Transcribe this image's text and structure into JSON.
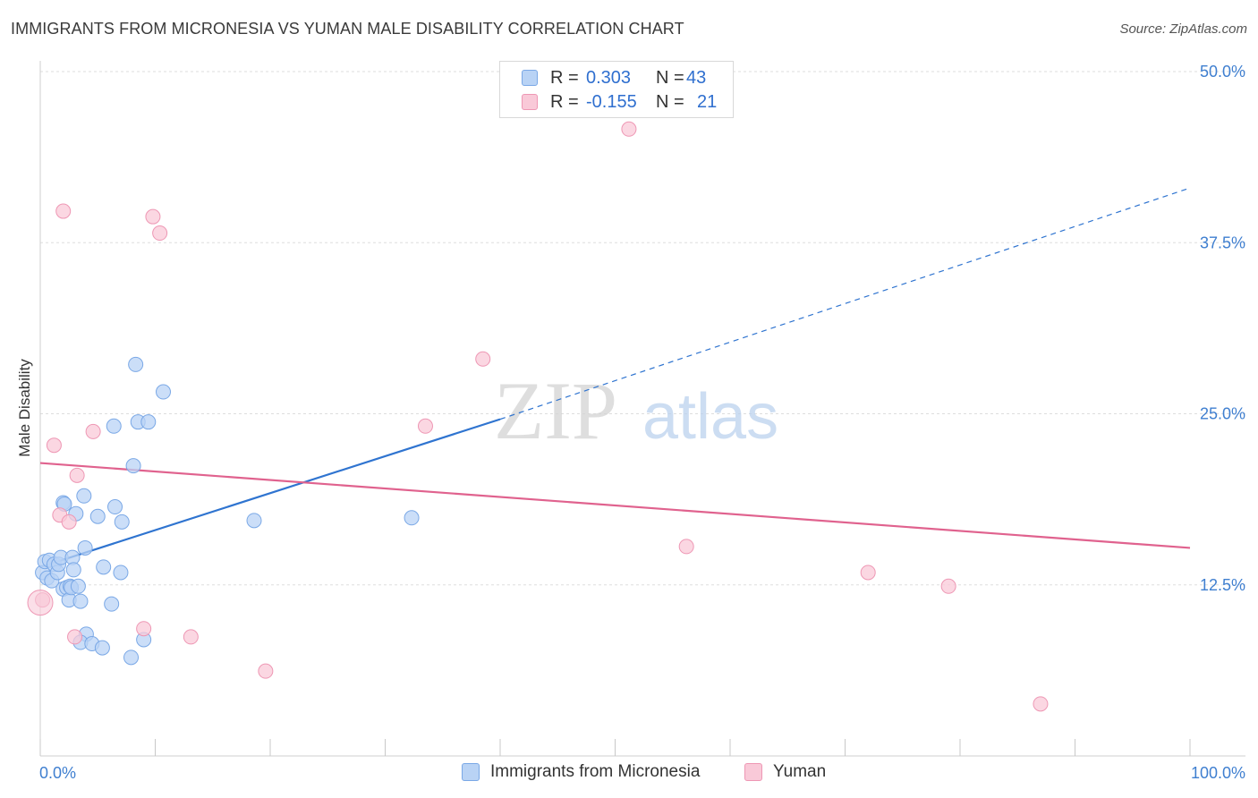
{
  "title": "IMMIGRANTS FROM MICRONESIA VS YUMAN MALE DISABILITY CORRELATION CHART",
  "source": "Source: ZipAtlas.com",
  "watermark": {
    "zip": "ZIP",
    "atlas": "atlas"
  },
  "legend": {
    "r_label": "R =",
    "n_label": "N =",
    "series": [
      {
        "name": "Immigrants from Micronesia",
        "r": "0.303",
        "n": "43"
      },
      {
        "name": "Yuman",
        "r": "-0.155",
        "n": "21"
      }
    ]
  },
  "colors": {
    "blue_fill": "#b9d3f5",
    "blue_stroke": "#7aa8e6",
    "blue_line": "#2f74d0",
    "pink_fill": "#f9c9d8",
    "pink_stroke": "#ee97b4",
    "pink_line": "#e0628e",
    "tick_text": "#3f7fd0",
    "grid": "#dddddd"
  },
  "chart_data": {
    "type": "scatter",
    "title": "IMMIGRANTS FROM MICRONESIA VS YUMAN MALE DISABILITY CORRELATION CHART",
    "xlabel": "",
    "ylabel": "Male Disability",
    "xlim": [
      0,
      100
    ],
    "ylim": [
      0,
      50
    ],
    "x_tick_labels": [
      "0.0%",
      "100.0%"
    ],
    "y_ticks": [
      12.5,
      25.0,
      37.5,
      50.0
    ],
    "y_tick_labels": [
      "12.5%",
      "25.0%",
      "37.5%",
      "50.0%"
    ],
    "grid": true,
    "series": [
      {
        "name": "Immigrants from Micronesia",
        "color": "#7aa8e6",
        "points": [
          [
            0.2,
            13.4
          ],
          [
            0.4,
            14.2
          ],
          [
            0.6,
            13.0
          ],
          [
            0.8,
            14.3
          ],
          [
            1.0,
            12.8
          ],
          [
            1.2,
            14.0
          ],
          [
            1.5,
            13.4
          ],
          [
            1.6,
            14.0
          ],
          [
            1.8,
            14.5
          ],
          [
            2.0,
            12.2
          ],
          [
            2.0,
            18.5
          ],
          [
            2.1,
            18.4
          ],
          [
            2.3,
            12.3
          ],
          [
            2.5,
            11.4
          ],
          [
            2.6,
            12.4
          ],
          [
            2.7,
            12.3
          ],
          [
            2.8,
            14.5
          ],
          [
            2.9,
            13.6
          ],
          [
            3.1,
            17.7
          ],
          [
            3.3,
            12.4
          ],
          [
            3.5,
            11.3
          ],
          [
            3.8,
            19.0
          ],
          [
            3.9,
            15.2
          ],
          [
            4.0,
            8.9
          ],
          [
            3.5,
            8.3
          ],
          [
            4.5,
            8.2
          ],
          [
            5.0,
            17.5
          ],
          [
            5.4,
            7.9
          ],
          [
            5.5,
            13.8
          ],
          [
            6.2,
            11.1
          ],
          [
            6.4,
            24.1
          ],
          [
            6.5,
            18.2
          ],
          [
            7.0,
            13.4
          ],
          [
            7.1,
            17.1
          ],
          [
            7.9,
            7.2
          ],
          [
            8.1,
            21.2
          ],
          [
            8.3,
            28.6
          ],
          [
            8.5,
            24.4
          ],
          [
            9.0,
            8.5
          ],
          [
            9.4,
            24.4
          ],
          [
            10.7,
            26.6
          ],
          [
            18.6,
            17.2
          ],
          [
            32.3,
            17.4
          ]
        ]
      },
      {
        "name": "Yuman",
        "color": "#ee97b4",
        "points": [
          [
            0.2,
            11.4
          ],
          [
            1.2,
            22.7
          ],
          [
            1.7,
            17.6
          ],
          [
            2.0,
            39.8
          ],
          [
            2.5,
            17.1
          ],
          [
            3.0,
            8.7
          ],
          [
            3.2,
            20.5
          ],
          [
            4.6,
            23.7
          ],
          [
            9.0,
            9.3
          ],
          [
            9.8,
            39.4
          ],
          [
            10.4,
            38.2
          ],
          [
            13.1,
            8.7
          ],
          [
            19.6,
            6.2
          ],
          [
            33.5,
            24.1
          ],
          [
            38.5,
            29.0
          ],
          [
            51.2,
            45.8
          ],
          [
            56.2,
            15.3
          ],
          [
            72.0,
            13.4
          ],
          [
            79.0,
            12.4
          ],
          [
            87.0,
            3.8
          ],
          [
            -0.2,
            11.2
          ]
        ]
      }
    ],
    "trend_lines": [
      {
        "series": "Immigrants from Micronesia",
        "x0": 0,
        "y0": 13.8,
        "x_solid_end": 40,
        "y_solid_end": 24.6,
        "x1": 100,
        "y1": 41.5
      },
      {
        "series": "Yuman",
        "x0": 0,
        "y0": 21.4,
        "x1": 100,
        "y1": 15.2
      }
    ]
  }
}
